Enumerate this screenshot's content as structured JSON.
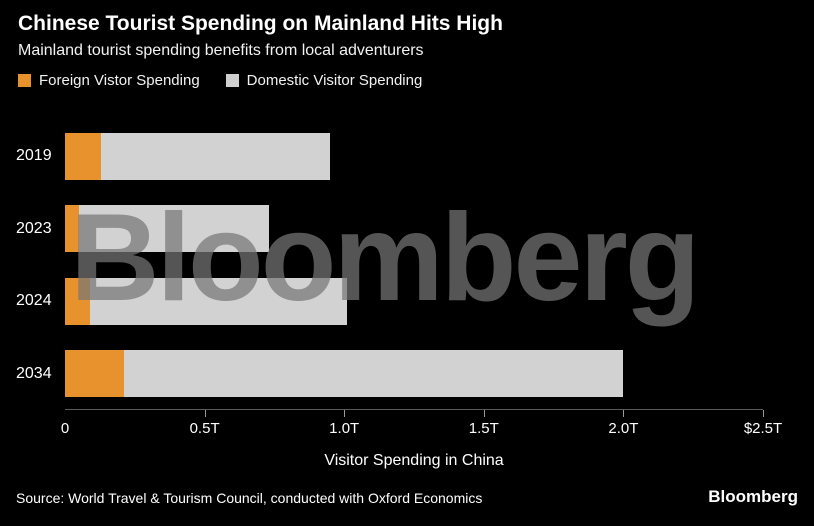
{
  "header": {
    "title": "Chinese Tourist Spending on Mainland Hits High",
    "subtitle": "Mainland tourist spending benefits from local adventurers"
  },
  "legend": [
    {
      "label": "Foreign Vistor Spending",
      "color": "#E8922D"
    },
    {
      "label": "Domestic Visitor Spending",
      "color": "#CFCFCF"
    }
  ],
  "watermark": "Bloomberg",
  "footer": {
    "source": "Source: World Travel & Tourism Council, conducted with Oxford Economics",
    "logo": "Bloomberg"
  },
  "chart_data": {
    "type": "bar",
    "orientation": "horizontal",
    "stacked": true,
    "title": "Chinese Tourist Spending on Mainland Hits High",
    "subtitle": "Mainland tourist spending benefits from local adventurers",
    "categories": [
      "2019",
      "2023",
      "2024",
      "2034"
    ],
    "series": [
      {
        "name": "Foreign Vistor Spending",
        "color": "#E8922D",
        "values": [
          0.13,
          0.05,
          0.09,
          0.21
        ]
      },
      {
        "name": "Domestic Visitor Spending",
        "color": "#D2D2D2",
        "values": [
          0.82,
          0.68,
          0.92,
          1.79
        ]
      }
    ],
    "totals": [
      0.95,
      0.73,
      1.01,
      2.0
    ],
    "xlabel": "Visitor Spending in China",
    "ylabel": "",
    "x_ticks": [
      "0",
      "0.5T",
      "1.0T",
      "1.5T",
      "2.0T",
      "$2.5T"
    ],
    "x_tick_values": [
      0,
      0.5,
      1.0,
      1.5,
      2.0,
      2.5
    ],
    "xlim": [
      0,
      2.5
    ],
    "grid": false,
    "legend_position": "top",
    "background": "#000000"
  }
}
